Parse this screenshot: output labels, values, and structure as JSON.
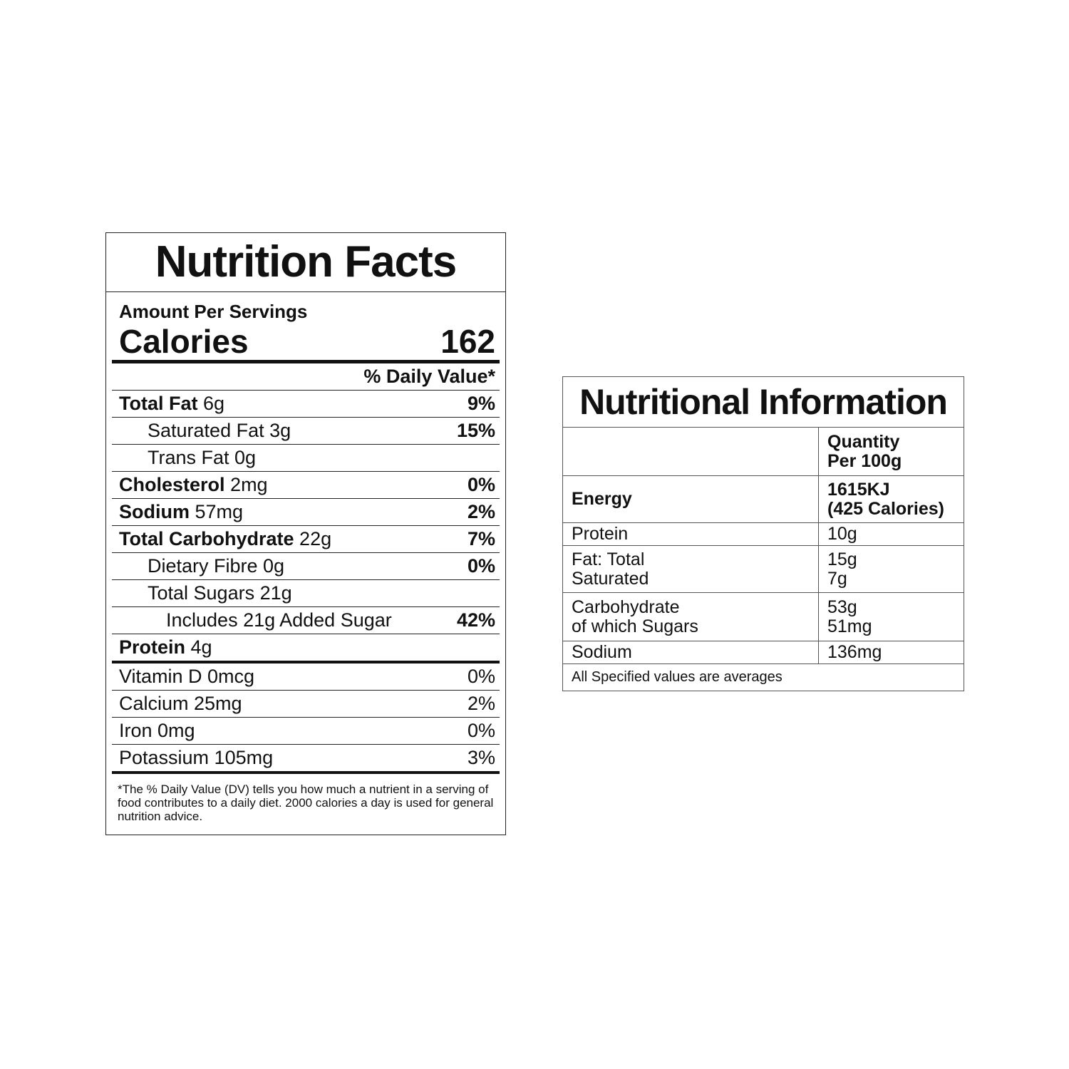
{
  "nutrition_facts": {
    "title": "Nutrition Facts",
    "serving_label": "Amount Per Servings",
    "calories_label": "Calories",
    "calories": "162",
    "daily_value_header": "% Daily Value*",
    "rows": [
      {
        "name": "Total Fat",
        "amount": "6g",
        "dv": "9%"
      },
      {
        "name": "Saturated Fat 3g",
        "dv": "15%"
      },
      {
        "name": "Trans Fat 0g"
      },
      {
        "name": "Cholesterol",
        "amount": "2mg",
        "dv": "0%"
      },
      {
        "name": "Sodium",
        "amount": "57mg",
        "dv": "2%"
      },
      {
        "name": "Total Carbohydrate",
        "amount": "22g",
        "dv": "7%"
      },
      {
        "name": "Dietary Fibre 0g",
        "dv": "0%"
      },
      {
        "name": "Total Sugars 21g"
      },
      {
        "name": "Includes 21g Added Sugar",
        "dv": "42%"
      },
      {
        "name": "Protein",
        "amount": "4g"
      }
    ],
    "vitamins": [
      {
        "name": "Vitamin D 0mcg",
        "dv": "0%"
      },
      {
        "name": "Calcium 25mg",
        "dv": "2%"
      },
      {
        "name": "Iron 0mg",
        "dv": "0%"
      },
      {
        "name": "Potassium 105mg",
        "dv": "3%"
      }
    ],
    "footnote": "*The % Daily Value (DV) tells you how much a nutrient in a serving of food contributes to a daily diet. 2000 calories a day is used for general nutrition advice."
  },
  "nutritional_information": {
    "title": "Nutritional Information",
    "header": [
      "Quantity",
      "Per 100g"
    ],
    "rows": [
      {
        "label": [
          "Energy"
        ],
        "value": [
          "1615KJ",
          "(425 Calories)"
        ]
      },
      {
        "label": [
          "Protein"
        ],
        "value": [
          "10g"
        ]
      },
      {
        "label": [
          "Fat: Total",
          "Saturated"
        ],
        "value": [
          "15g",
          "7g"
        ]
      },
      {
        "label": [
          "Carbohydrate",
          "of which Sugars"
        ],
        "value": [
          "53g",
          "51mg"
        ]
      },
      {
        "label": [
          "Sodium"
        ],
        "value": [
          "136mg"
        ]
      }
    ],
    "footer": "All Specified values are averages"
  }
}
